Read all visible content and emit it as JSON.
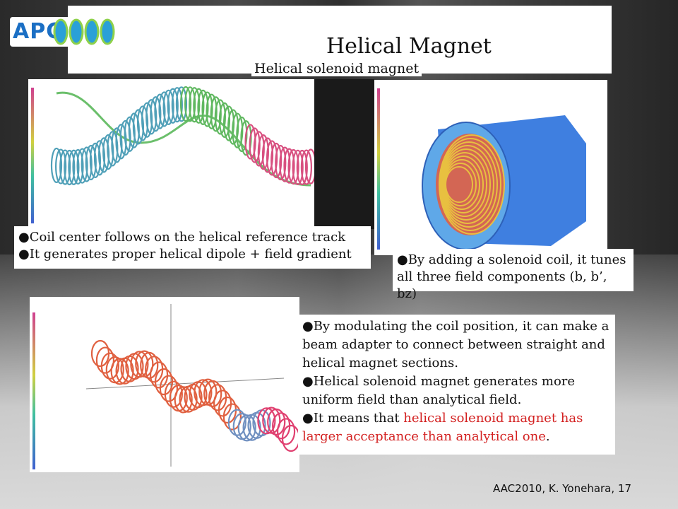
{
  "slide": {
    "logo_text": "APC",
    "title": "Helical Magnet",
    "subtitle": "Helical solenoid magnet",
    "bullets_left": [
      "●Coil center follows on the helical reference track",
      "●It generates proper helical dipole + field gradient"
    ],
    "bullets_right": [
      "●By adding a solenoid coil, it tunes",
      "all three field components (b, b’, bz)"
    ],
    "bullets_bottom": [
      "●By modulating the coil position, it can make a",
      "beam adapter to connect between straight and",
      "helical magnet sections.",
      "●Helical solenoid magnet generates more",
      "uniform field than analytical field.",
      "●It means that "
    ],
    "bullet_bottom_red": "helical solenoid magnet has",
    "bullet_bottom_red2": "larger acceptance than analytical one",
    "bullet_bottom_end": ".",
    "footer": "AAC2010, K. Yonehara, 17"
  },
  "colors": {
    "accent_red": "#d32020",
    "logo_blue": "#1b6fc4"
  }
}
